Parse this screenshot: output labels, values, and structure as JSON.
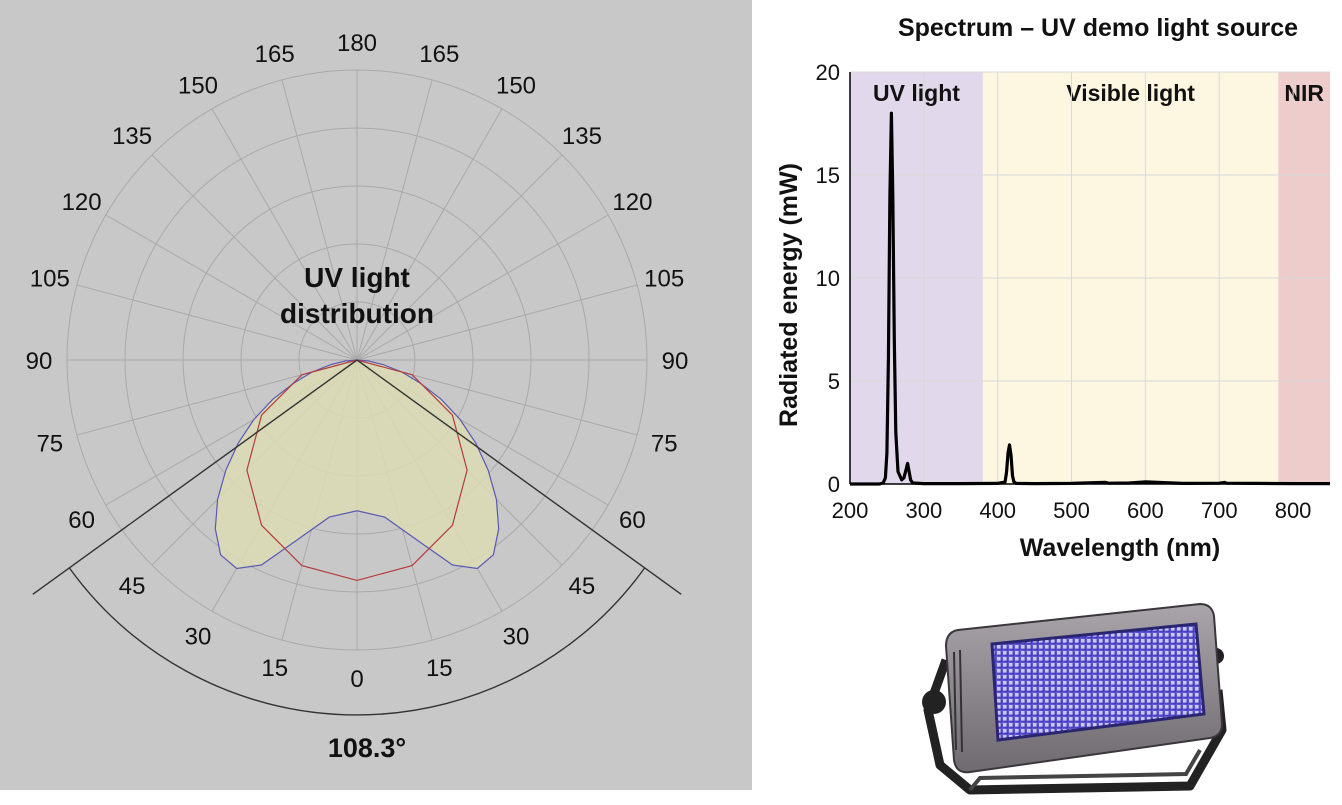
{
  "polar_chart": {
    "title_line1": "UV light",
    "title_line2": "distribution",
    "beam_angle_label": "108.3°",
    "beam_angle_deg": 108.3,
    "angle_labels_right": [
      "0",
      "15",
      "30",
      "45",
      "60",
      "75",
      "90",
      "105",
      "120",
      "135",
      "150",
      "165",
      "180"
    ],
    "angle_labels_left": [
      "15",
      "30",
      "45",
      "60",
      "75",
      "90",
      "105",
      "120",
      "135",
      "150",
      "165"
    ],
    "colors": {
      "background": "#c8c8c8",
      "grid": "#a9a9a9",
      "fill": "#dcdcb4",
      "blue_curve": "#5a5ab4",
      "red_curve": "#b43c3c",
      "lines": "#333333"
    }
  },
  "chart_data": [
    {
      "type": "line",
      "title": "Spectrum – UV demo light source",
      "xlabel": "Wavelength (nm)",
      "ylabel": "Radiated energy (mW)",
      "xlim": [
        200,
        850
      ],
      "ylim": [
        0,
        20
      ],
      "x_ticks": [
        "200",
        "300",
        "400",
        "500",
        "600",
        "700",
        "800"
      ],
      "y_ticks": [
        "0",
        "5",
        "10",
        "15",
        "20"
      ],
      "grid": true,
      "bands": [
        {
          "label": "UV light",
          "from": 200,
          "to": 380,
          "color": "#e2d8ec"
        },
        {
          "label": "Visible light",
          "from": 380,
          "to": 780,
          "color": "#fdf7e1"
        },
        {
          "label": "NIR",
          "from": 780,
          "to": 850,
          "color": "#eecccc"
        }
      ],
      "series": [
        {
          "color": "#000000",
          "x": [
            200,
            240,
            245,
            248,
            250,
            252,
            254,
            256,
            258,
            260,
            262,
            265,
            270,
            273,
            276,
            278,
            280,
            282,
            285,
            300,
            350,
            400,
            410,
            412,
            414,
            416,
            418,
            420,
            422,
            425,
            450,
            500,
            546,
            550,
            578,
            600,
            650,
            700,
            707,
            710,
            750,
            800,
            850
          ],
          "y": [
            0,
            0,
            0.05,
            0.3,
            1.5,
            6.0,
            14.0,
            18.0,
            14.0,
            7.0,
            2.5,
            0.6,
            0.2,
            0.3,
            0.7,
            1.0,
            0.6,
            0.2,
            0.05,
            0.02,
            0.02,
            0.03,
            0.1,
            0.6,
            1.5,
            1.9,
            1.4,
            0.4,
            0.1,
            0.03,
            0.02,
            0.03,
            0.08,
            0.04,
            0.05,
            0.1,
            0.03,
            0.04,
            0.08,
            0.04,
            0.03,
            0.02,
            0.02
          ]
        }
      ]
    },
    {
      "type": "polar",
      "title": "UV light distribution",
      "theta_ticks": [
        0,
        15,
        30,
        45,
        60,
        75,
        90,
        105,
        120,
        135,
        150,
        165,
        180
      ],
      "beam_angle": 108.3,
      "series": [
        {
          "color": "#5a5ab4",
          "theta": [
            0,
            10,
            20,
            25,
            30,
            35,
            40,
            45,
            50,
            55,
            60,
            65,
            70,
            75,
            80,
            85,
            90
          ],
          "r": [
            0.52,
            0.55,
            0.68,
            0.78,
            0.83,
            0.82,
            0.76,
            0.68,
            0.59,
            0.5,
            0.41,
            0.32,
            0.23,
            0.16,
            0.09,
            0.04,
            0
          ]
        },
        {
          "color": "#b43c3c",
          "theta": [
            0,
            15,
            30,
            45,
            60,
            75,
            90
          ],
          "r": [
            0.76,
            0.734,
            0.658,
            0.537,
            0.38,
            0.197,
            0
          ]
        }
      ]
    }
  ]
}
